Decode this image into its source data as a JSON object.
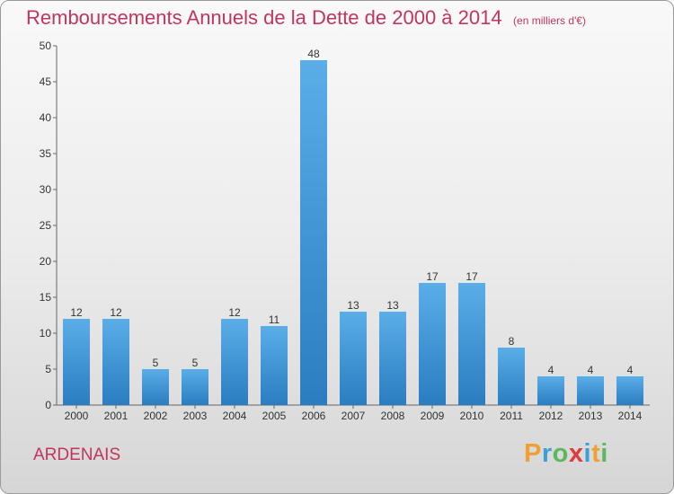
{
  "header": {
    "title": "Remboursements Annuels de la Dette de 2000 à 2014",
    "unit": "(en milliers d'€)"
  },
  "footer": {
    "commune": "ARDENAIS",
    "logo_letters": [
      {
        "char": "P",
        "color": "#f0a030"
      },
      {
        "char": "r",
        "color": "#3aa0d8"
      },
      {
        "char": "o",
        "color": "#5cb85c"
      },
      {
        "char": "x",
        "color": "#e03a3a"
      },
      {
        "char": "i",
        "color": "#3aa0d8"
      },
      {
        "char": "t",
        "color": "#f0a030"
      },
      {
        "char": "i",
        "color": "#5cb85c"
      }
    ]
  },
  "colors": {
    "title": "#c0365d",
    "bar_top": "#5aaee8",
    "bar_bottom": "#2a7dc0"
  },
  "chart_data": {
    "type": "bar",
    "title": "Remboursements Annuels de la Dette de 2000 à 2014",
    "categories": [
      "2000",
      "2001",
      "2002",
      "2003",
      "2004",
      "2005",
      "2006",
      "2007",
      "2008",
      "2009",
      "2010",
      "2011",
      "2012",
      "2013",
      "2014"
    ],
    "values": [
      12,
      12,
      5,
      5,
      12,
      11,
      48,
      13,
      13,
      17,
      17,
      8,
      4,
      4,
      4
    ],
    "data_labels": [
      "12",
      "12",
      "5",
      "5",
      "12",
      "11",
      "48",
      "13",
      "13",
      "17",
      "17",
      "8",
      "4",
      "4",
      "4"
    ],
    "ylim": [
      0,
      50
    ],
    "yticks": [
      0,
      5,
      10,
      15,
      20,
      25,
      30,
      35,
      40,
      45,
      50
    ],
    "grid": false
  }
}
